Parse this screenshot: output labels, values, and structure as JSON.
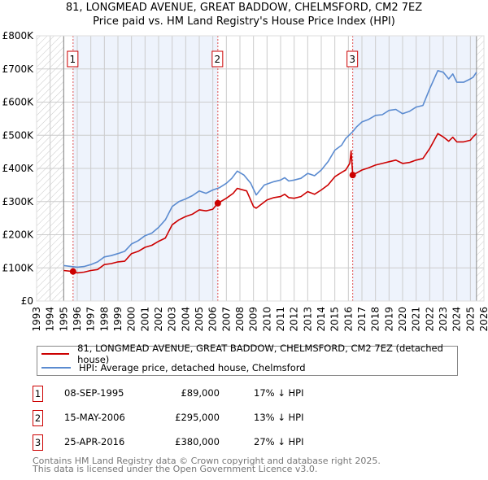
{
  "title_line1": "81, LONGMEAD AVENUE, GREAT BADDOW, CHELMSFORD, CM2 7EZ",
  "title_line2": "Price paid vs. HM Land Registry's House Price Index (HPI)",
  "colors": {
    "property": "#cc0000",
    "hpi": "#5b8bd0",
    "shade": "#eef3fc",
    "grid": "#cccccc"
  },
  "chart_data": {
    "type": "line",
    "title": "Price paid vs. HM Land Registry's House Price Index (HPI)",
    "xlim": [
      1993,
      2026
    ],
    "ylim": [
      0,
      800000
    ],
    "x_ticks": [
      "1993",
      "1994",
      "1995",
      "1996",
      "1997",
      "1998",
      "1999",
      "2000",
      "2001",
      "2002",
      "2003",
      "2004",
      "2005",
      "2006",
      "2007",
      "2008",
      "2009",
      "2010",
      "2011",
      "2012",
      "2013",
      "2014",
      "2015",
      "2016",
      "2017",
      "2018",
      "2019",
      "2020",
      "2021",
      "2022",
      "2023",
      "2024",
      "2025",
      "2026"
    ],
    "y_ticks": [
      {
        "v": 0,
        "label": "£0"
      },
      {
        "v": 100000,
        "label": "£100K"
      },
      {
        "v": 200000,
        "label": "£200K"
      },
      {
        "v": 300000,
        "label": "£300K"
      },
      {
        "v": 400000,
        "label": "£400K"
      },
      {
        "v": 500000,
        "label": "£500K"
      },
      {
        "v": 600000,
        "label": "£600K"
      },
      {
        "v": 700000,
        "label": "£700K"
      },
      {
        "v": 800000,
        "label": "£800K"
      }
    ],
    "data_start": 1995.0,
    "data_end": 2025.45,
    "series": [
      {
        "name": "81, LONGMEAD AVENUE, GREAT BADDOW, CHELMSFORD, CM2 7EZ (detached house)",
        "x": [
          1995,
          1995.69,
          1996,
          1996.5,
          1997,
          1997.5,
          1998,
          1998.5,
          1999,
          1999.5,
          2000,
          2000.5,
          2001,
          2001.5,
          2002,
          2002.5,
          2003,
          2003.5,
          2004,
          2004.5,
          2005,
          2005.5,
          2006,
          2006.37,
          2007,
          2007.5,
          2007.8,
          2008.5,
          2009,
          2009.2,
          2010,
          2010.5,
          2011,
          2011.3,
          2011.6,
          2012,
          2012.5,
          2013,
          2013.5,
          2014,
          2014.5,
          2015,
          2015.5,
          2015.8,
          2016.1,
          2016.2,
          2016.32,
          2017,
          2017.5,
          2018,
          2018.5,
          2019,
          2019.5,
          2020,
          2020.5,
          2021,
          2021.5,
          2022,
          2022.6,
          2023,
          2023.4,
          2023.7,
          2024,
          2024.5,
          2025,
          2025.2,
          2025.45
        ],
        "y": [
          92000,
          89000,
          85000,
          87000,
          92000,
          95000,
          110000,
          113000,
          118000,
          120000,
          143000,
          150000,
          162000,
          168000,
          180000,
          190000,
          230000,
          245000,
          255000,
          262000,
          275000,
          272000,
          277000,
          295000,
          310000,
          325000,
          340000,
          332000,
          285000,
          280000,
          305000,
          312000,
          315000,
          322000,
          312000,
          310000,
          315000,
          330000,
          322000,
          335000,
          350000,
          375000,
          388000,
          395000,
          415000,
          453000,
          380000,
          395000,
          402000,
          410000,
          415000,
          420000,
          425000,
          415000,
          418000,
          425000,
          430000,
          460000,
          505000,
          495000,
          482000,
          494000,
          480000,
          480000,
          485000,
          495000,
          505000
        ]
      },
      {
        "name": "HPI: Average price, detached house, Chelmsford",
        "x": [
          1995,
          1996,
          1996.5,
          1997,
          1997.5,
          1998,
          1998.5,
          1999,
          1999.5,
          2000,
          2000.5,
          2001,
          2001.5,
          2002,
          2002.5,
          2003,
          2003.5,
          2004,
          2004.5,
          2005,
          2005.5,
          2006,
          2006.5,
          2007,
          2007.4,
          2007.8,
          2008.3,
          2008.8,
          2009.2,
          2009.8,
          2010.5,
          2011,
          2011.3,
          2011.6,
          2012,
          2012.5,
          2013,
          2013.5,
          2014,
          2014.5,
          2015,
          2015.5,
          2015.8,
          2016.3,
          2016.6,
          2017,
          2017.5,
          2018,
          2018.5,
          2019,
          2019.5,
          2020,
          2020.5,
          2021,
          2021.5,
          2022,
          2022.6,
          2023,
          2023.4,
          2023.7,
          2024,
          2024.5,
          2025,
          2025.2,
          2025.45
        ],
        "y": [
          107000,
          102000,
          104000,
          110000,
          118000,
          133000,
          137000,
          143000,
          150000,
          172000,
          182000,
          197000,
          205000,
          222000,
          245000,
          285000,
          300000,
          308000,
          318000,
          332000,
          325000,
          335000,
          342000,
          355000,
          370000,
          392000,
          380000,
          355000,
          320000,
          350000,
          360000,
          365000,
          372000,
          362000,
          365000,
          370000,
          385000,
          378000,
          395000,
          420000,
          455000,
          470000,
          490000,
          510000,
          525000,
          540000,
          548000,
          560000,
          562000,
          575000,
          578000,
          565000,
          572000,
          585000,
          590000,
          640000,
          695000,
          690000,
          670000,
          685000,
          660000,
          660000,
          670000,
          675000,
          690000
        ]
      }
    ],
    "sales": [
      {
        "label": "1",
        "x": 1995.69,
        "y": 89000
      },
      {
        "label": "2",
        "x": 2006.37,
        "y": 295000
      },
      {
        "label": "3",
        "x": 2016.32,
        "y": 380000
      }
    ]
  },
  "legend": {
    "property": "81, LONGMEAD AVENUE, GREAT BADDOW, CHELMSFORD, CM2 7EZ (detached house)",
    "hpi": "HPI: Average price, detached house, Chelmsford"
  },
  "transactions": [
    {
      "num": "1",
      "date": "08-SEP-1995",
      "price": "£89,000",
      "pct": "17% ↓ HPI"
    },
    {
      "num": "2",
      "date": "15-MAY-2006",
      "price": "£295,000",
      "pct": "13% ↓ HPI"
    },
    {
      "num": "3",
      "date": "25-APR-2016",
      "price": "£380,000",
      "pct": "27% ↓ HPI"
    }
  ],
  "footer": {
    "line1": "Contains HM Land Registry data © Crown copyright and database right 2025.",
    "line2": "This data is licensed under the Open Government Licence v3.0."
  }
}
